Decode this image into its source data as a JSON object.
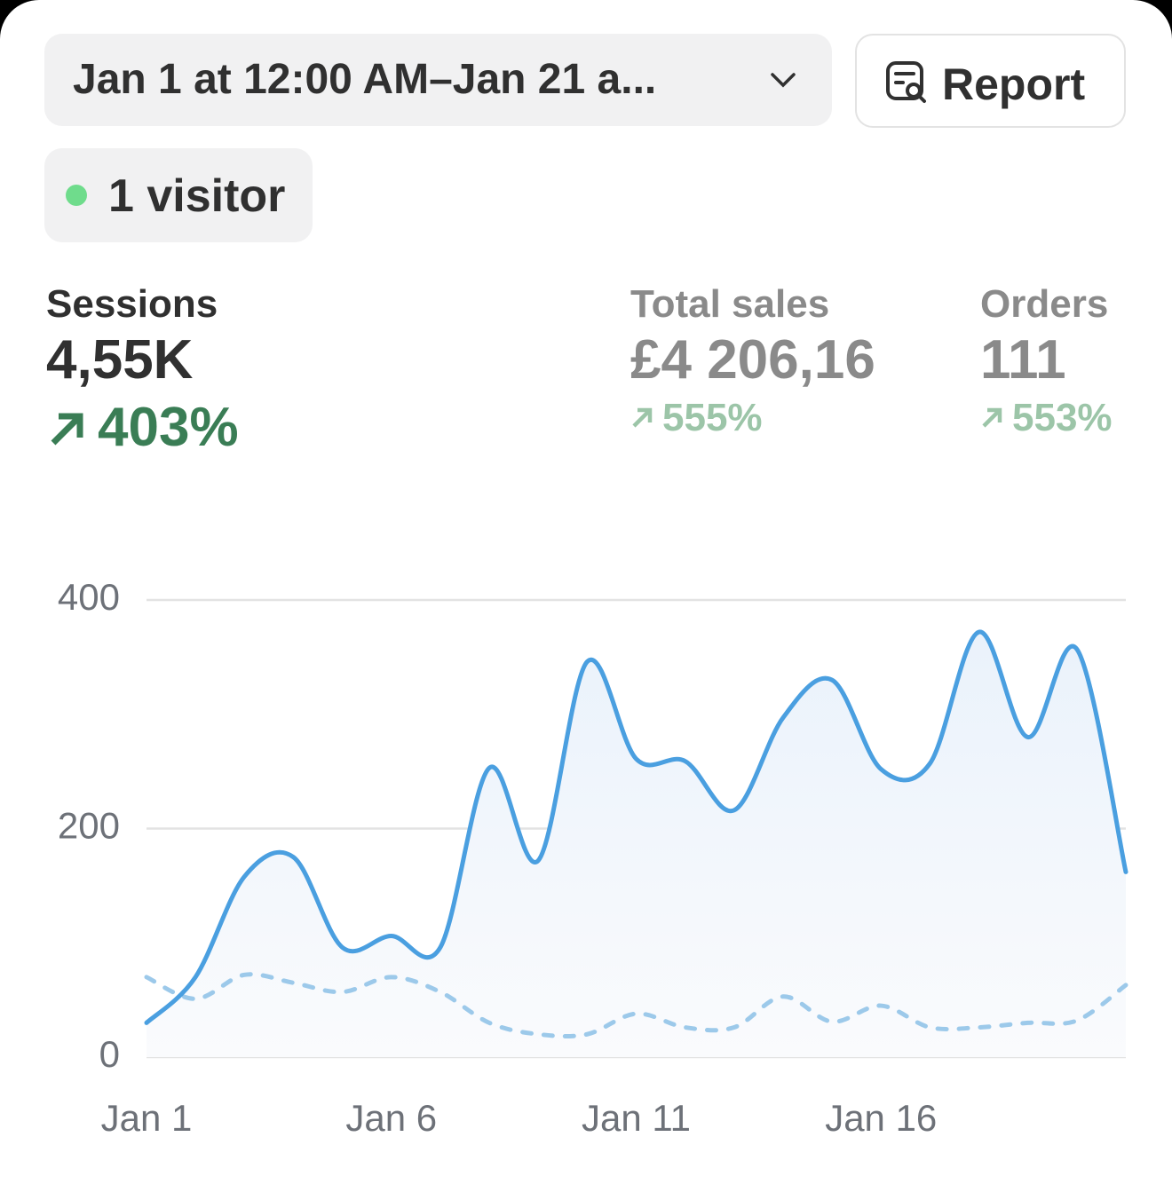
{
  "header": {
    "date_range": "Jan 1 at 12:00 AM–Jan 21 a...",
    "report_button": "Report",
    "visitors": "1 visitor"
  },
  "metrics": [
    {
      "label": "Sessions",
      "value": "4,55K",
      "change": "403%"
    },
    {
      "label": "Total sales",
      "value": "£4 206,16",
      "change": "555%"
    },
    {
      "label": "Orders",
      "value": "111",
      "change": "553%"
    }
  ],
  "chart_data": {
    "type": "line",
    "categories": [
      "Jan 1",
      null,
      null,
      null,
      null,
      "Jan 6",
      null,
      null,
      null,
      null,
      "Jan 11",
      null,
      null,
      null,
      null,
      "Jan 16",
      null,
      null,
      null,
      null,
      null
    ],
    "series": [
      {
        "color": "#4a9fe0",
        "style": "solid",
        "area": true,
        "values": [
          30,
          70,
          158,
          175,
          96,
          106,
          96,
          253,
          172,
          346,
          261,
          259,
          216,
          297,
          330,
          252,
          257,
          372,
          280,
          357,
          162
        ]
      },
      {
        "color": "#9cc9ea",
        "style": "dashed",
        "values": [
          70,
          51,
          72,
          65,
          57,
          70,
          57,
          30,
          20,
          20,
          38,
          26,
          26,
          53,
          31,
          45,
          26,
          26,
          30,
          32,
          63
        ]
      }
    ],
    "ylim": [
      0,
      400
    ],
    "yticks": [
      0,
      200,
      400
    ],
    "grid": true
  }
}
